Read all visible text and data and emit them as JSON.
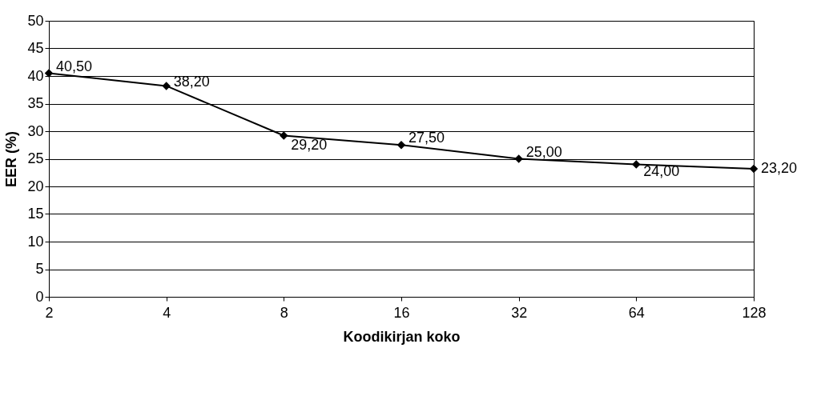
{
  "chart_data": {
    "type": "line",
    "xlabel": "Koodikirjan koko",
    "ylabel": "EER (%)",
    "categories": [
      "2",
      "4",
      "8",
      "16",
      "32",
      "64",
      "128"
    ],
    "series": [
      {
        "color": "#000000",
        "values": [
          40.5,
          38.2,
          29.2,
          27.5,
          25.0,
          24.0,
          23.2
        ],
        "value_labels": [
          "40,50",
          "38,20",
          "29,20",
          "27,50",
          "25,00",
          "24,00",
          "23,20"
        ]
      }
    ],
    "ylim": [
      0,
      50
    ],
    "yticks": [
      0,
      5,
      10,
      15,
      20,
      25,
      30,
      35,
      40,
      45,
      50
    ],
    "grid": "y",
    "marker": "diamond",
    "line_style": "solid",
    "legend": false
  }
}
